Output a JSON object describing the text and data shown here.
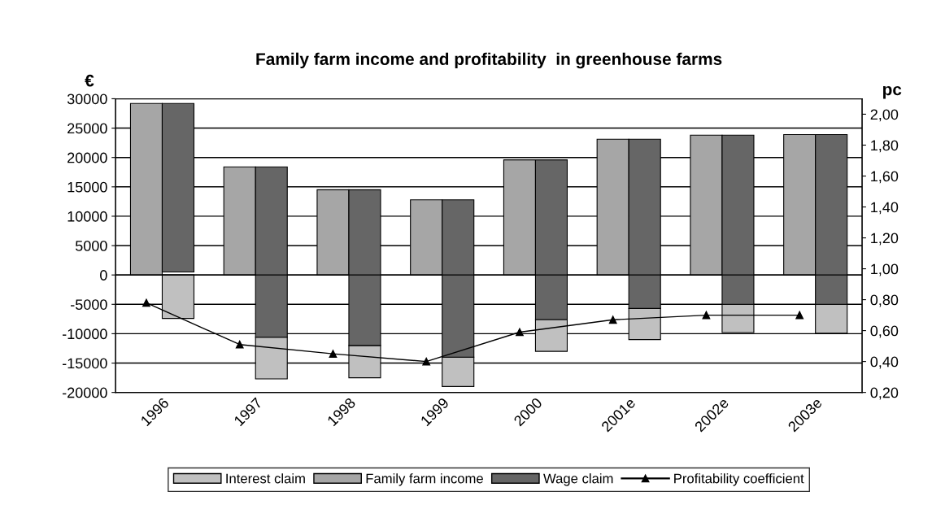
{
  "chart_data": {
    "type": "bar",
    "title": "Family farm income and profitability  in greenhouse farms",
    "ylabel": "€",
    "y2label": "pc",
    "categories": [
      "1996",
      "1997",
      "1998",
      "1999",
      "2000",
      "2001e",
      "2002e",
      "2003e"
    ],
    "series": [
      {
        "name": "Interest claim",
        "color": "#c0c0c0",
        "base": [
          0,
          -10600,
          -12000,
          -14000,
          -7600,
          -5700,
          -5000,
          -5000
        ],
        "values": [
          -7400,
          -7100,
          -5500,
          -5000,
          -5400,
          -5300,
          -4800,
          -4900
        ]
      },
      {
        "name": "Family farm income",
        "color": "#a6a6a6",
        "values": [
          29200,
          18400,
          14500,
          12800,
          19600,
          23100,
          23800,
          23900
        ]
      },
      {
        "name": "Wage claim",
        "color": "#666666",
        "base": [
          500,
          -10600,
          -12000,
          -14000,
          -7600,
          -5700,
          -5000,
          -5000
        ],
        "values": [
          28700,
          29000,
          26500,
          26800,
          27200,
          28800,
          28800,
          28900
        ]
      },
      {
        "name": "Profitability coefficient",
        "type": "line",
        "axis": "y2",
        "color": "#000000",
        "marker": "triangle",
        "values": [
          0.78,
          0.51,
          0.45,
          0.4,
          0.59,
          0.67,
          0.7,
          0.7
        ]
      }
    ],
    "ylim": [
      -20000,
      30000
    ],
    "yticks": [
      -20000,
      -15000,
      -10000,
      -5000,
      0,
      5000,
      10000,
      15000,
      20000,
      25000,
      30000
    ],
    "y2lim": [
      0.2,
      2.1
    ],
    "y2ticks": [
      {
        "value": 0.2,
        "label": "0,20"
      },
      {
        "value": 0.4,
        "label": "0,40"
      },
      {
        "value": 0.6,
        "label": "0,60"
      },
      {
        "value": 0.8,
        "label": "0,80"
      },
      {
        "value": 1.0,
        "label": "1,00"
      },
      {
        "value": 1.2,
        "label": "1,20"
      },
      {
        "value": 1.4,
        "label": "1,40"
      },
      {
        "value": 1.6,
        "label": "1,60"
      },
      {
        "value": 1.8,
        "label": "1,80"
      },
      {
        "value": 2.0,
        "label": "2,00"
      }
    ],
    "grid": "y",
    "legend": "bottom"
  }
}
